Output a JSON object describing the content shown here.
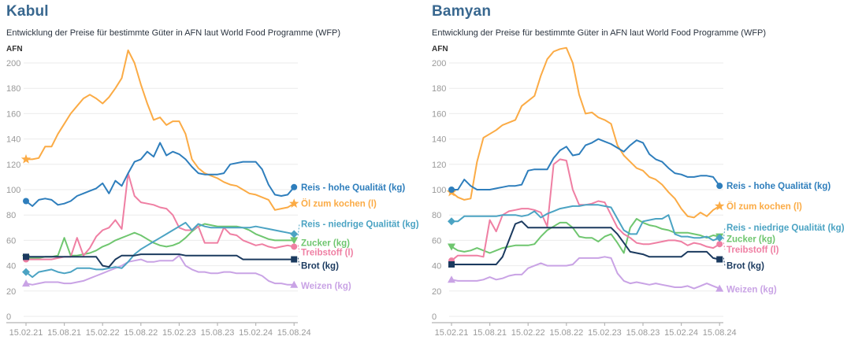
{
  "chart_data": [
    {
      "type": "line",
      "title": "Kabul",
      "subtitle": "Entwicklung der Preise für bestimmte Güter in AFN laut World Food Programme (WFP)",
      "ylabel": "AFN",
      "ylim": [
        0,
        200
      ],
      "y_ticks": [
        0,
        20,
        40,
        60,
        80,
        100,
        120,
        140,
        160,
        180,
        200
      ],
      "x_tick_labels": [
        "15.02.21",
        "15.08.21",
        "15.02.22",
        "15.08.22",
        "15.02.23",
        "15.08.23",
        "15.02.24",
        "15.08.24"
      ],
      "grid": true,
      "legend_position": "right-of-line-ends",
      "series": [
        {
          "name": "Reis - hohe Qualität (kg)",
          "color": "#2e7ebc",
          "marker": "circle",
          "values": [
            91,
            87,
            92,
            93,
            92,
            88,
            89,
            91,
            95,
            97,
            99,
            101,
            105,
            97,
            107,
            103,
            113,
            122,
            124,
            130,
            126,
            137,
            127,
            130,
            128,
            124,
            118,
            113,
            112,
            112,
            112,
            113,
            120,
            121,
            122,
            122,
            122,
            116,
            104,
            96,
            95,
            96,
            102
          ]
        },
        {
          "name": "Öl zum kochen (l)",
          "color": "#fbab45",
          "marker": "star",
          "values": [
            124,
            124,
            125,
            134,
            134,
            144,
            152,
            160,
            166,
            172,
            175,
            172,
            168,
            173,
            180,
            188,
            210,
            200,
            183,
            168,
            155,
            157,
            151,
            154,
            154,
            144,
            124,
            117,
            113,
            111,
            109,
            106,
            104,
            103,
            100,
            97,
            96,
            94,
            92,
            84,
            85,
            86,
            89
          ]
        },
        {
          "name": "Reis - niedrige Qualität (kg)",
          "color": "#4ba3c3",
          "marker": "diamond",
          "values": [
            35,
            31,
            35,
            36,
            37,
            35,
            34,
            35,
            38,
            38,
            38,
            37,
            37,
            38,
            39,
            38,
            43,
            49,
            53,
            56,
            59,
            62,
            65,
            68,
            71,
            74,
            68,
            73,
            71,
            70,
            70,
            70,
            70,
            70,
            70,
            70,
            71,
            70,
            69,
            68,
            67,
            66,
            65
          ]
        },
        {
          "name": "Zucker (kg)",
          "color": "#6fc66f",
          "marker": "triangle-down",
          "values": [
            46,
            46,
            46,
            47,
            47,
            48,
            62,
            48,
            48,
            49,
            50,
            52,
            55,
            57,
            60,
            62,
            64,
            66,
            64,
            61,
            58,
            56,
            55,
            56,
            58,
            62,
            67,
            71,
            73,
            72,
            71,
            71,
            71,
            71,
            70,
            68,
            65,
            63,
            61,
            60,
            60,
            60,
            60
          ]
        },
        {
          "name": "Treibstoff (l)",
          "color": "#ef7fa3",
          "marker": "circle",
          "values": [
            45,
            45,
            45,
            45,
            45,
            46,
            47,
            47,
            62,
            48,
            54,
            63,
            68,
            70,
            76,
            69,
            113,
            95,
            90,
            89,
            88,
            86,
            85,
            80,
            70,
            68,
            68,
            71,
            58,
            58,
            58,
            70,
            65,
            64,
            60,
            58,
            56,
            57,
            55,
            54,
            55,
            56,
            55
          ]
        },
        {
          "name": "Brot (kg)",
          "color": "#1b3a5f",
          "marker": "square",
          "values": [
            47,
            47,
            47,
            47,
            47,
            47,
            47,
            47,
            47,
            47,
            47,
            47,
            40,
            39,
            45,
            48,
            48,
            48,
            49,
            49,
            49,
            49,
            49,
            49,
            49,
            48,
            48,
            48,
            48,
            48,
            48,
            48,
            48,
            48,
            45,
            45,
            45,
            45,
            45,
            45,
            45,
            45,
            45
          ]
        },
        {
          "name": "Weizen (kg)",
          "color": "#c9a3e5",
          "marker": "triangle-up",
          "values": [
            26,
            25,
            26,
            27,
            27,
            27,
            26,
            26,
            27,
            28,
            30,
            32,
            34,
            36,
            38,
            40,
            43,
            44,
            45,
            43,
            43,
            44,
            44,
            44,
            48,
            40,
            37,
            35,
            35,
            34,
            34,
            35,
            35,
            34,
            34,
            34,
            34,
            32,
            28,
            26,
            26,
            25,
            25
          ]
        }
      ]
    },
    {
      "type": "line",
      "title": "Bamyan",
      "subtitle": "Entwicklung der Preise für bestimmte Güter in AFN laut World Food Programme (WFP)",
      "ylabel": "AFN",
      "ylim": [
        0,
        200
      ],
      "y_ticks": [
        0,
        20,
        40,
        60,
        80,
        100,
        120,
        140,
        160,
        180,
        200
      ],
      "x_tick_labels": [
        "15.02.21",
        "15.08.21",
        "15.02.22",
        "15.08.22",
        "15.02.23",
        "15.08.23",
        "15.02.24",
        "15.08.24"
      ],
      "grid": true,
      "legend_position": "right-of-line-ends",
      "series": [
        {
          "name": "Reis - hohe Qualität (kg)",
          "color": "#2e7ebc",
          "marker": "circle",
          "values": [
            100,
            100,
            108,
            103,
            100,
            100,
            100,
            101,
            102,
            103,
            103,
            104,
            115,
            116,
            116,
            116,
            125,
            131,
            134,
            127,
            128,
            135,
            137,
            140,
            138,
            136,
            133,
            130,
            135,
            139,
            137,
            128,
            124,
            122,
            117,
            113,
            112,
            110,
            110,
            111,
            111,
            110,
            103
          ]
        },
        {
          "name": "Öl zum kochen (l)",
          "color": "#fbab45",
          "marker": "star",
          "values": [
            98,
            94,
            92,
            93,
            122,
            141,
            144,
            147,
            151,
            153,
            155,
            166,
            170,
            174,
            190,
            203,
            209,
            211,
            212,
            200,
            175,
            160,
            161,
            157,
            155,
            152,
            135,
            127,
            122,
            117,
            115,
            110,
            108,
            104,
            98,
            93,
            85,
            79,
            78,
            82,
            79,
            84,
            87
          ]
        },
        {
          "name": "Reis - niedrige Qualität (kg)",
          "color": "#4ba3c3",
          "marker": "diamond",
          "values": [
            75,
            75,
            79,
            79,
            79,
            79,
            79,
            79,
            80,
            80,
            80,
            79,
            80,
            83,
            78,
            81,
            83,
            85,
            86,
            87,
            87,
            88,
            88,
            88,
            87,
            86,
            77,
            68,
            65,
            65,
            75,
            76,
            77,
            77,
            80,
            65,
            63,
            63,
            62,
            62,
            63,
            60,
            62
          ]
        },
        {
          "name": "Zucker (kg)",
          "color": "#6fc66f",
          "marker": "triangle-down",
          "values": [
            55,
            52,
            51,
            52,
            54,
            52,
            50,
            52,
            54,
            55,
            56,
            56,
            56,
            57,
            63,
            68,
            71,
            74,
            74,
            70,
            63,
            62,
            62,
            59,
            63,
            65,
            58,
            50,
            70,
            77,
            74,
            72,
            71,
            69,
            68,
            66,
            66,
            66,
            65,
            64,
            62,
            64,
            63
          ]
        },
        {
          "name": "Treibstoff (l)",
          "color": "#ef7fa3",
          "marker": "circle",
          "values": [
            44,
            48,
            48,
            48,
            48,
            47,
            76,
            67,
            80,
            83,
            84,
            85,
            85,
            84,
            82,
            71,
            120,
            124,
            123,
            100,
            88,
            88,
            89,
            91,
            90,
            80,
            70,
            65,
            62,
            58,
            57,
            57,
            58,
            59,
            60,
            60,
            59,
            56,
            58,
            57,
            55,
            54,
            57
          ]
        },
        {
          "name": "Brot (kg)",
          "color": "#1b3a5f",
          "marker": "square",
          "values": [
            41,
            41,
            41,
            41,
            41,
            41,
            41,
            41,
            47,
            60,
            73,
            75,
            70,
            70,
            70,
            70,
            70,
            70,
            70,
            70,
            70,
            70,
            70,
            70,
            70,
            70,
            65,
            58,
            51,
            50,
            49,
            47,
            47,
            47,
            47,
            47,
            47,
            51,
            51,
            51,
            51,
            46,
            45
          ]
        },
        {
          "name": "Weizen (kg)",
          "color": "#c9a3e5",
          "marker": "triangle-up",
          "values": [
            29,
            28,
            28,
            28,
            28,
            29,
            31,
            29,
            30,
            32,
            33,
            33,
            38,
            40,
            42,
            40,
            40,
            40,
            40,
            41,
            46,
            46,
            46,
            46,
            47,
            46,
            34,
            28,
            26,
            27,
            26,
            25,
            26,
            25,
            24,
            23,
            23,
            24,
            22,
            24,
            26,
            24,
            22
          ]
        }
      ]
    }
  ],
  "style_colors": {
    "title_color": "#38678f",
    "axis_label_color": "#999999",
    "grid_color": "#ebebeb",
    "axis_line_color": "#b5b5b5"
  }
}
